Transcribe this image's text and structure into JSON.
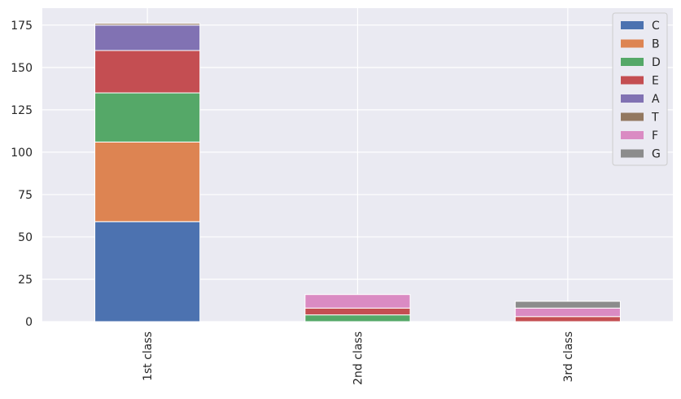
{
  "chart_data": {
    "type": "bar",
    "stacked": true,
    "title": "",
    "xlabel": "",
    "ylabel": "",
    "categories": [
      "1st class",
      "2nd class",
      "3rd class"
    ],
    "ylim": [
      0,
      185
    ],
    "yticks": [
      0,
      25,
      50,
      75,
      100,
      125,
      150,
      175
    ],
    "grid": true,
    "legend_position": "top-right",
    "series": [
      {
        "name": "C",
        "color": "#4c72b0",
        "values": [
          59,
          0,
          0
        ]
      },
      {
        "name": "B",
        "color": "#dd8452",
        "values": [
          47,
          0,
          0
        ]
      },
      {
        "name": "D",
        "color": "#55a868",
        "values": [
          29,
          4,
          0
        ]
      },
      {
        "name": "E",
        "color": "#c44e52",
        "values": [
          25,
          4,
          3
        ]
      },
      {
        "name": "A",
        "color": "#8172b3",
        "values": [
          15,
          0,
          0
        ]
      },
      {
        "name": "T",
        "color": "#937860",
        "values": [
          1,
          0,
          0
        ]
      },
      {
        "name": "F",
        "color": "#da8bc3",
        "values": [
          0,
          8,
          5
        ]
      },
      {
        "name": "G",
        "color": "#8c8c8c",
        "values": [
          0,
          0,
          4
        ]
      }
    ]
  }
}
